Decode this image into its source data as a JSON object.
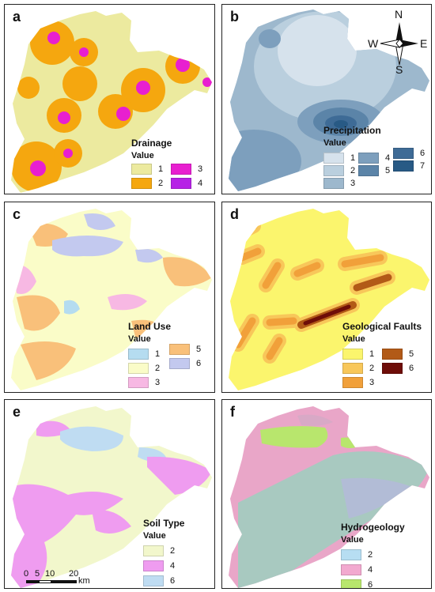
{
  "panels": {
    "a": {
      "letter": "a",
      "legend_title": "Drainage",
      "legend_sub": "Value",
      "items": [
        {
          "label": "1",
          "color": "#ecea9f"
        },
        {
          "label": "2",
          "color": "#f5a70f"
        },
        {
          "label": "3",
          "color": "#e81fd0"
        },
        {
          "label": "4",
          "color": "#b622e6"
        }
      ]
    },
    "b": {
      "letter": "b",
      "legend_title": "Precipitation",
      "legend_sub": "Value",
      "items": [
        {
          "label": "1",
          "color": "#d6e2ec"
        },
        {
          "label": "2",
          "color": "#bacfde"
        },
        {
          "label": "3",
          "color": "#9db8cd"
        },
        {
          "label": "4",
          "color": "#7d9fbd"
        },
        {
          "label": "5",
          "color": "#5b84a8"
        },
        {
          "label": "6",
          "color": "#3e6b96"
        },
        {
          "label": "7",
          "color": "#285a85"
        }
      ],
      "compass": {
        "n": "N",
        "s": "S",
        "e": "E",
        "w": "W"
      }
    },
    "c": {
      "letter": "c",
      "legend_title": "Land Use",
      "legend_sub": "Value",
      "items": [
        {
          "label": "1",
          "color": "#b5dcf0"
        },
        {
          "label": "2",
          "color": "#fafcc8"
        },
        {
          "label": "3",
          "color": "#f7b8e3"
        },
        {
          "label": "5",
          "color": "#f9c07a"
        },
        {
          "label": "6",
          "color": "#c3c9ef"
        }
      ]
    },
    "d": {
      "letter": "d",
      "legend_title": "Geological Faults",
      "legend_sub": "Value",
      "items": [
        {
          "label": "1",
          "color": "#fbf56d"
        },
        {
          "label": "2",
          "color": "#f8c75a"
        },
        {
          "label": "3",
          "color": "#f1a03a"
        },
        {
          "label": "5",
          "color": "#b25a17"
        },
        {
          "label": "6",
          "color": "#6e0d08"
        }
      ]
    },
    "e": {
      "letter": "e",
      "legend_title": "Soil Type",
      "legend_sub": "Value",
      "items": [
        {
          "label": "2",
          "color": "#f2f7cc"
        },
        {
          "label": "4",
          "color": "#ef9cf0"
        },
        {
          "label": "6",
          "color": "#bfdcf2"
        }
      ],
      "scale": {
        "ticks": [
          "0",
          "5",
          "10",
          "20"
        ],
        "unit": "km"
      }
    },
    "f": {
      "letter": "f",
      "legend_title": "Hydrogeology",
      "legend_sub": "Value",
      "items": [
        {
          "label": "2",
          "color": "#b7def2"
        },
        {
          "label": "4",
          "color": "#f2a9cf"
        },
        {
          "label": "6",
          "color": "#b8e66d"
        }
      ]
    }
  }
}
